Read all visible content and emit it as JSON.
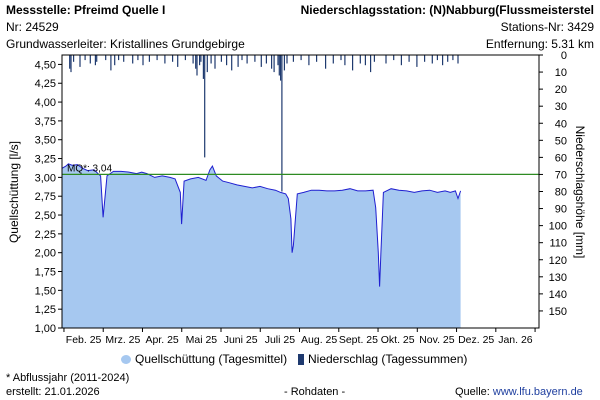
{
  "header": {
    "station_left": "Messstelle: Pfreimd Quelle I",
    "number_left": "Nr: 24529",
    "aquifer": "Grundwasserleiter: Kristallines Grundgebirge",
    "station_right": "Niederschlagsstation: (N)Nabburg(Flussmeisterstel",
    "number_right": "Stations-Nr: 3429",
    "distance": "Entfernung: 5.31 km"
  },
  "legend": {
    "discharge": "Quellschüttung (Tagesmittel)",
    "precip": "Niederschlag (Tagessummen)"
  },
  "footer": {
    "note": "* Abflussjahr (2011-2024)",
    "created": "erstellt:  21.01.2026",
    "raw": "- Rohdaten -",
    "source_label": "Quelle:",
    "source_link": "www.lfu.bayern.de"
  },
  "chart_data": {
    "type": "area",
    "xlabel": "",
    "ylabel_left": "Quellschüttung [l/s]",
    "ylabel_right": "Niederschlagshöhe [mm]",
    "x_ticks": [
      "Feb. 25",
      "Mrz. 25",
      "Apr. 25",
      "Mai 25",
      "Juni 25",
      "Juli 25",
      "Aug. 25",
      "Sept. 25",
      "Okt. 25",
      "Nov. 25",
      "Dez. 25",
      "Jan. 26"
    ],
    "y_left_ticks": [
      "1,00",
      "1,25",
      "1,50",
      "1,75",
      "2,00",
      "2,25",
      "2,50",
      "2,75",
      "3,00",
      "3,25",
      "3,50",
      "3,75",
      "4,00",
      "4,25",
      "4,50"
    ],
    "y_right_ticks": [
      "0",
      "10",
      "20",
      "30",
      "40",
      "50",
      "60",
      "70",
      "80",
      "90",
      "100",
      "110",
      "120",
      "130",
      "140",
      "150"
    ],
    "ylim_left": [
      1.0,
      4.625
    ],
    "ylim_right": [
      0,
      160
    ],
    "xlim_days": [
      0,
      371
    ],
    "reference_line": {
      "label": "MQ*: 3,04",
      "value": 3.04,
      "color": "#2e8b22"
    },
    "discharge_color": "#a6c8f0",
    "discharge_line_color": "#1f1fd0",
    "precip_color": "#1f3a6f",
    "discharge_series": {
      "name": "Quellschüttung (Tagesmittel)",
      "points": [
        [
          0,
          3.12
        ],
        [
          3,
          3.15
        ],
        [
          5,
          3.18
        ],
        [
          8,
          3.16
        ],
        [
          12,
          3.17
        ],
        [
          16,
          3.12
        ],
        [
          20,
          3.09
        ],
        [
          25,
          3.1
        ],
        [
          28,
          3.05
        ],
        [
          30,
          3.02
        ],
        [
          32,
          2.47
        ],
        [
          33,
          2.65
        ],
        [
          35,
          3.02
        ],
        [
          40,
          3.08
        ],
        [
          46,
          3.08
        ],
        [
          52,
          3.07
        ],
        [
          58,
          3.05
        ],
        [
          62,
          3.07
        ],
        [
          66,
          3.05
        ],
        [
          72,
          3.0
        ],
        [
          78,
          3.02
        ],
        [
          84,
          3.0
        ],
        [
          88,
          2.98
        ],
        [
          92,
          2.8
        ],
        [
          93,
          2.38
        ],
        [
          95,
          2.95
        ],
        [
          100,
          2.98
        ],
        [
          106,
          3.0
        ],
        [
          112,
          2.96
        ],
        [
          115,
          3.1
        ],
        [
          117,
          3.15
        ],
        [
          120,
          3.02
        ],
        [
          125,
          2.95
        ],
        [
          130,
          2.93
        ],
        [
          136,
          2.9
        ],
        [
          142,
          2.88
        ],
        [
          148,
          2.86
        ],
        [
          154,
          2.88
        ],
        [
          160,
          2.85
        ],
        [
          166,
          2.83
        ],
        [
          170,
          2.8
        ],
        [
          174,
          2.78
        ],
        [
          176,
          2.72
        ],
        [
          178,
          2.45
        ],
        [
          179,
          2.0
        ],
        [
          180,
          2.1
        ],
        [
          183,
          2.78
        ],
        [
          188,
          2.8
        ],
        [
          194,
          2.83
        ],
        [
          200,
          2.83
        ],
        [
          206,
          2.82
        ],
        [
          212,
          2.82
        ],
        [
          218,
          2.83
        ],
        [
          224,
          2.85
        ],
        [
          230,
          2.82
        ],
        [
          236,
          2.82
        ],
        [
          242,
          2.83
        ],
        [
          244,
          2.6
        ],
        [
          246,
          2.0
        ],
        [
          247,
          1.55
        ],
        [
          248,
          2.0
        ],
        [
          250,
          2.8
        ],
        [
          256,
          2.85
        ],
        [
          262,
          2.83
        ],
        [
          268,
          2.82
        ],
        [
          274,
          2.8
        ],
        [
          280,
          2.82
        ],
        [
          286,
          2.83
        ],
        [
          292,
          2.8
        ],
        [
          298,
          2.82
        ],
        [
          302,
          2.8
        ],
        [
          306,
          2.82
        ],
        [
          308,
          2.72
        ],
        [
          310,
          2.82
        ]
      ]
    },
    "precip_series": {
      "name": "Niederschlag (Tagessummen)",
      "points": [
        [
          6,
          8
        ],
        [
          7,
          10
        ],
        [
          9,
          4
        ],
        [
          14,
          7
        ],
        [
          18,
          3
        ],
        [
          22,
          5
        ],
        [
          26,
          6
        ],
        [
          27,
          4
        ],
        [
          34,
          3
        ],
        [
          38,
          9
        ],
        [
          41,
          6
        ],
        [
          44,
          3
        ],
        [
          48,
          4
        ],
        [
          55,
          5
        ],
        [
          59,
          3
        ],
        [
          63,
          6
        ],
        [
          68,
          4
        ],
        [
          74,
          3
        ],
        [
          80,
          5
        ],
        [
          86,
          4
        ],
        [
          90,
          7
        ],
        [
          96,
          3
        ],
        [
          102,
          5
        ],
        [
          104,
          8
        ],
        [
          105,
          12
        ],
        [
          107,
          6
        ],
        [
          108,
          4
        ],
        [
          110,
          14
        ],
        [
          111,
          60
        ],
        [
          113,
          10
        ],
        [
          116,
          5
        ],
        [
          119,
          8
        ],
        [
          124,
          4
        ],
        [
          128,
          6
        ],
        [
          132,
          9
        ],
        [
          137,
          7
        ],
        [
          140,
          3
        ],
        [
          144,
          5
        ],
        [
          150,
          4
        ],
        [
          155,
          7
        ],
        [
          159,
          5
        ],
        [
          163,
          8
        ],
        [
          165,
          10
        ],
        [
          168,
          6
        ],
        [
          169,
          12
        ],
        [
          170,
          15
        ],
        [
          171,
          80
        ],
        [
          173,
          9
        ],
        [
          175,
          5
        ],
        [
          180,
          4
        ],
        [
          186,
          3
        ],
        [
          192,
          6
        ],
        [
          198,
          4
        ],
        [
          205,
          8
        ],
        [
          211,
          5
        ],
        [
          217,
          3
        ],
        [
          220,
          6
        ],
        [
          226,
          9
        ],
        [
          232,
          5
        ],
        [
          236,
          6
        ],
        [
          240,
          10
        ],
        [
          243,
          4
        ],
        [
          252,
          5
        ],
        [
          258,
          3
        ],
        [
          264,
          6
        ],
        [
          270,
          4
        ],
        [
          276,
          7
        ],
        [
          282,
          4
        ],
        [
          288,
          5
        ],
        [
          292,
          3
        ],
        [
          296,
          6
        ],
        [
          300,
          4
        ],
        [
          304,
          3
        ],
        [
          308,
          5
        ]
      ]
    }
  }
}
